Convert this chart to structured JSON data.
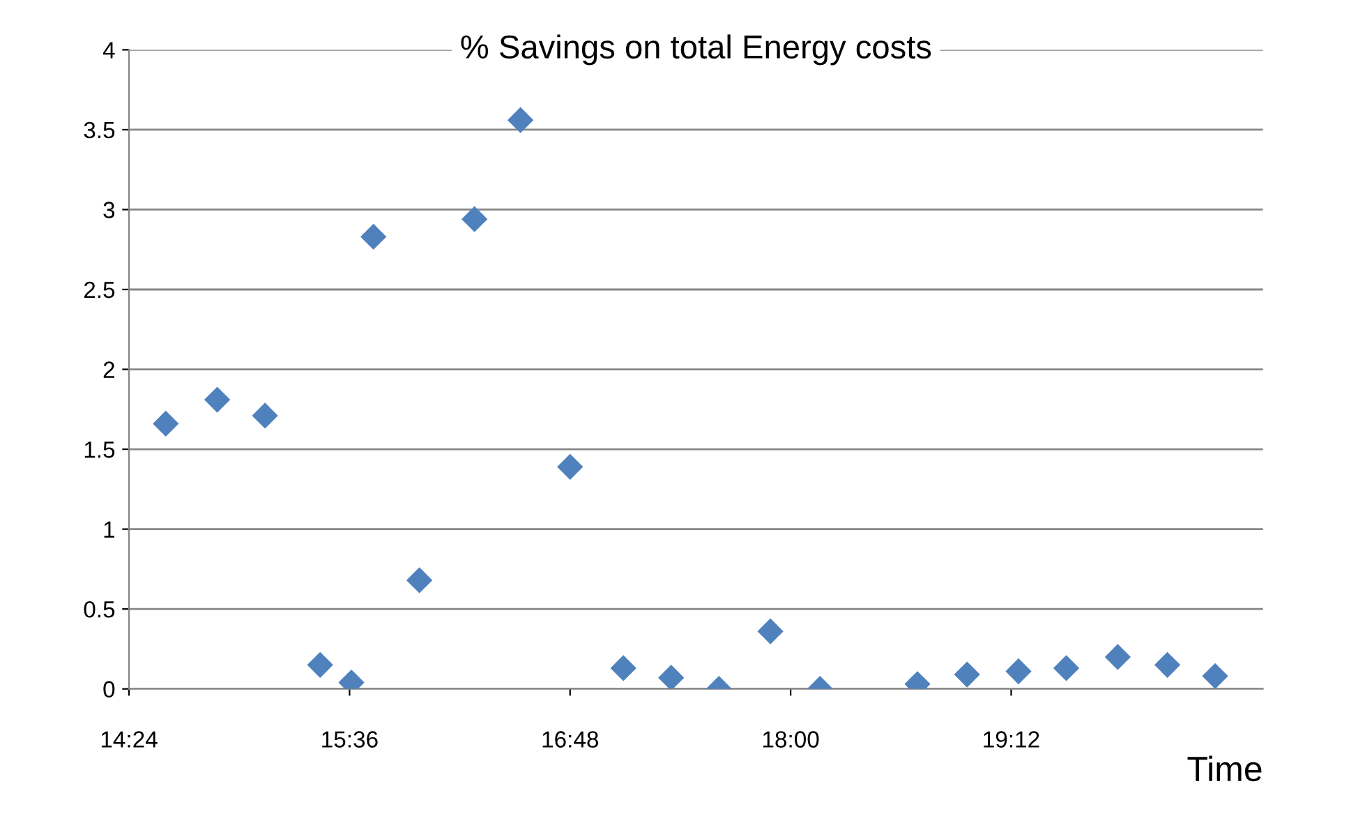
{
  "chart_data": {
    "type": "scatter",
    "title": "% Savings on total Energy costs",
    "xlabel": "Time",
    "x": [
      14.6,
      14.88,
      15.14,
      15.44,
      15.61,
      15.73,
      15.98,
      16.28,
      16.53,
      16.8,
      17.09,
      17.35,
      17.61,
      17.89,
      18.16,
      18.69,
      18.96,
      19.24,
      19.5,
      19.78,
      20.05,
      20.31
    ],
    "values": [
      1.66,
      1.81,
      1.71,
      0.15,
      0.04,
      2.83,
      0.68,
      2.94,
      3.56,
      1.39,
      0.13,
      0.07,
      0,
      0.36,
      0,
      0.03,
      0.09,
      0.11,
      0.13,
      0.2,
      0.15,
      0.08
    ],
    "color": "#4f81bd",
    "marker": "diamond",
    "grid": "y",
    "xlim": [
      14.4,
      20.57
    ],
    "xticks": [
      {
        "value": 14.4,
        "label": "14:24"
      },
      {
        "value": 15.6,
        "label": "15:36"
      },
      {
        "value": 16.8,
        "label": "16:48"
      },
      {
        "value": 18.0,
        "label": "18:00"
      },
      {
        "value": 19.2,
        "label": "19:12"
      }
    ],
    "ylim": [
      0,
      4
    ],
    "yticks": [
      0,
      0.5,
      1,
      1.5,
      2,
      2.5,
      3,
      3.5,
      4
    ]
  }
}
